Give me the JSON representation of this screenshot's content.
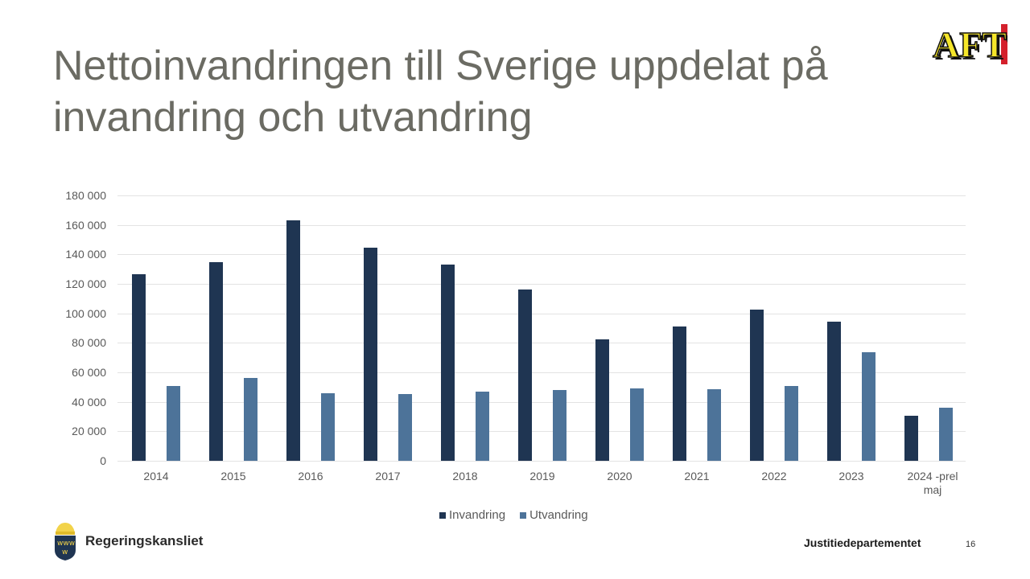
{
  "slide": {
    "title": "Nettoinvandringen till Sverige uppdelat på invandring och utvandring",
    "brand_logo": "AFT",
    "footer_org": "Regeringskansliet",
    "footer_department": "Justitiedepartementet",
    "page_number": "16"
  },
  "colors": {
    "invandring": "#1f3552",
    "utvandring": "#4d7399",
    "title": "#6b6b63"
  },
  "chart_data": {
    "type": "bar",
    "title": "Nettoinvandringen till Sverige uppdelat på invandring och utvandring",
    "xlabel": "",
    "ylabel": "",
    "ylim": [
      0,
      180000
    ],
    "yticks": [
      "0",
      "20 000",
      "40 000",
      "60 000",
      "80 000",
      "100 000",
      "120 000",
      "140 000",
      "160 000",
      "180 000"
    ],
    "grid": true,
    "legend_position": "bottom",
    "categories": [
      "2014",
      "2015",
      "2016",
      "2017",
      "2018",
      "2019",
      "2020",
      "2021",
      "2022",
      "2023",
      "2024 -prel maj"
    ],
    "series": [
      {
        "name": "Invandring",
        "color": "#1f3552",
        "values": [
          126500,
          134500,
          163000,
          144500,
          133000,
          116000,
          82500,
          91000,
          102500,
          94500,
          30500
        ]
      },
      {
        "name": "Utvandring",
        "color": "#4d7399",
        "values": [
          51000,
          56000,
          46000,
          45500,
          47000,
          48000,
          49000,
          48500,
          51000,
          73500,
          36000
        ]
      }
    ]
  }
}
